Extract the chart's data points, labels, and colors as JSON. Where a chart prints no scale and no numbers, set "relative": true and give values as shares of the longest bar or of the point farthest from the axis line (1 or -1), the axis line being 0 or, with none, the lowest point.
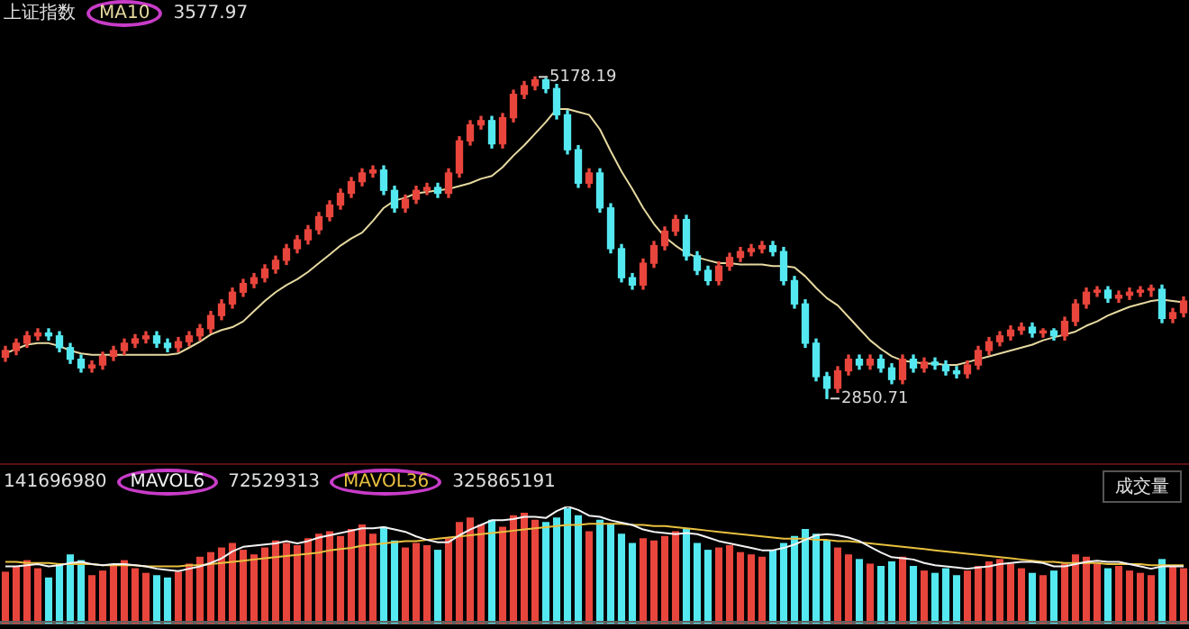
{
  "chart_data": [
    {
      "type": "candlestick",
      "title": "上证指数",
      "marker": "none",
      "categories": [
        null,
        null,
        null,
        null,
        null,
        null,
        null,
        null,
        null,
        null,
        null,
        null,
        null,
        null,
        null,
        null,
        null,
        null,
        null,
        null,
        null,
        null,
        null,
        null,
        null,
        null,
        null,
        null,
        null,
        null,
        null,
        null,
        null,
        null,
        null,
        null,
        null,
        null,
        null,
        null,
        null,
        null,
        null,
        null,
        null,
        null,
        null,
        null,
        null,
        null,
        null,
        null,
        null,
        null,
        null,
        null,
        null,
        null,
        null,
        null,
        null,
        null,
        null,
        null,
        null,
        null,
        null,
        null,
        null,
        null,
        null,
        null,
        null,
        null,
        null,
        null,
        null,
        null,
        null,
        null,
        null,
        null,
        null,
        null,
        null,
        null,
        null,
        null,
        null,
        null,
        null,
        null,
        null,
        null,
        null,
        null,
        null,
        null,
        null,
        null,
        null,
        null,
        null,
        null,
        null,
        null,
        null,
        null,
        null,
        null
      ],
      "ohlc": [
        [
          3150,
          3228,
          3120,
          3198
        ],
        [
          3198,
          3281,
          3168,
          3251
        ],
        [
          3251,
          3334,
          3221,
          3304
        ],
        [
          3304,
          3355,
          3274,
          3325
        ],
        [
          3325,
          3355,
          3274,
          3304
        ],
        [
          3304,
          3334,
          3189,
          3219
        ],
        [
          3219,
          3249,
          3105,
          3135
        ],
        [
          3135,
          3165,
          3042,
          3072
        ],
        [
          3072,
          3123,
          3042,
          3093
        ],
        [
          3093,
          3186,
          3063,
          3156
        ],
        [
          3156,
          3228,
          3126,
          3198
        ],
        [
          3198,
          3281,
          3168,
          3251
        ],
        [
          3251,
          3313,
          3221,
          3283
        ],
        [
          3283,
          3334,
          3253,
          3304
        ],
        [
          3304,
          3334,
          3221,
          3251
        ],
        [
          3251,
          3281,
          3189,
          3219
        ],
        [
          3219,
          3292,
          3189,
          3262
        ],
        [
          3262,
          3334,
          3232,
          3304
        ],
        [
          3304,
          3386,
          3274,
          3356
        ],
        [
          3356,
          3481,
          3326,
          3451
        ],
        [
          3451,
          3565,
          3421,
          3535
        ],
        [
          3535,
          3650,
          3505,
          3620
        ],
        [
          3620,
          3713,
          3590,
          3683
        ],
        [
          3683,
          3755,
          3653,
          3725
        ],
        [
          3725,
          3818,
          3695,
          3788
        ],
        [
          3788,
          3881,
          3758,
          3851
        ],
        [
          3851,
          3965,
          3821,
          3935
        ],
        [
          3935,
          4029,
          3905,
          3999
        ],
        [
          3999,
          4102,
          3969,
          4072
        ],
        [
          4072,
          4197,
          4042,
          4167
        ],
        [
          4167,
          4281,
          4137,
          4251
        ],
        [
          4251,
          4366,
          4221,
          4336
        ],
        [
          4336,
          4450,
          4306,
          4420
        ],
        [
          4420,
          4513,
          4390,
          4483
        ],
        [
          4483,
          4534,
          4453,
          4504
        ],
        [
          4504,
          4534,
          4327,
          4357
        ],
        [
          4357,
          4387,
          4200,
          4230
        ],
        [
          4230,
          4323,
          4200,
          4293
        ],
        [
          4293,
          4387,
          4263,
          4357
        ],
        [
          4357,
          4408,
          4327,
          4378
        ],
        [
          4378,
          4408,
          4306,
          4336
        ],
        [
          4336,
          4513,
          4306,
          4483
        ],
        [
          4483,
          4745,
          4453,
          4715
        ],
        [
          4715,
          4861,
          4685,
          4831
        ],
        [
          4831,
          4892,
          4801,
          4862
        ],
        [
          4862,
          4892,
          4664,
          4694
        ],
        [
          4694,
          4913,
          4664,
          4883
        ],
        [
          4883,
          5082,
          4853,
          5052
        ],
        [
          5052,
          5145,
          5022,
          5115
        ],
        [
          5115,
          5178.19,
          5085,
          5157
        ],
        [
          5157,
          5167,
          5064,
          5094
        ],
        [
          5094,
          5124,
          4874,
          4904
        ],
        [
          4904,
          4934,
          4621,
          4651
        ],
        [
          4651,
          4681,
          4379,
          4409
        ],
        [
          4409,
          4513,
          4379,
          4483
        ],
        [
          4483,
          4513,
          4200,
          4230
        ],
        [
          4230,
          4260,
          3905,
          3935
        ],
        [
          3935,
          3965,
          3695,
          3725
        ],
        [
          3725,
          3755,
          3642,
          3672
        ],
        [
          3672,
          3860,
          3642,
          3830
        ],
        [
          3830,
          3987,
          3800,
          3957
        ],
        [
          3957,
          4092,
          3927,
          4062
        ],
        [
          4062,
          4176,
          4032,
          4146
        ],
        [
          4146,
          4176,
          3853,
          3883
        ],
        [
          3883,
          3913,
          3748,
          3778
        ],
        [
          3778,
          3808,
          3674,
          3704
        ],
        [
          3704,
          3839,
          3674,
          3809
        ],
        [
          3809,
          3902,
          3779,
          3872
        ],
        [
          3872,
          3944,
          3842,
          3914
        ],
        [
          3914,
          3965,
          3884,
          3935
        ],
        [
          3935,
          3987,
          3905,
          3957
        ],
        [
          3957,
          3987,
          3884,
          3914
        ],
        [
          3914,
          3944,
          3674,
          3704
        ],
        [
          3704,
          3734,
          3505,
          3535
        ],
        [
          3535,
          3565,
          3221,
          3251
        ],
        [
          3251,
          3281,
          2979,
          3009
        ],
        [
          3009,
          3039,
          2850.71,
          2925
        ],
        [
          2925,
          3081,
          2895,
          3051
        ],
        [
          3051,
          3165,
          3021,
          3135
        ],
        [
          3135,
          3165,
          3063,
          3093
        ],
        [
          3093,
          3165,
          3063,
          3135
        ],
        [
          3135,
          3165,
          3042,
          3072
        ],
        [
          3072,
          3102,
          2958,
          2988
        ],
        [
          2988,
          3165,
          2958,
          3135
        ],
        [
          3135,
          3165,
          3042,
          3072
        ],
        [
          3072,
          3144,
          3042,
          3114
        ],
        [
          3114,
          3144,
          3063,
          3093
        ],
        [
          3093,
          3123,
          3021,
          3051
        ],
        [
          3051,
          3081,
          3000,
          3030
        ],
        [
          3030,
          3123,
          3000,
          3093
        ],
        [
          3093,
          3228,
          3063,
          3198
        ],
        [
          3198,
          3292,
          3168,
          3262
        ],
        [
          3262,
          3334,
          3232,
          3304
        ],
        [
          3304,
          3376,
          3274,
          3346
        ],
        [
          3346,
          3397,
          3316,
          3367
        ],
        [
          3367,
          3397,
          3295,
          3325
        ],
        [
          3325,
          3355,
          3295,
          3340
        ],
        [
          3340,
          3355,
          3274,
          3304
        ],
        [
          3304,
          3439,
          3274,
          3409
        ],
        [
          3409,
          3565,
          3379,
          3535
        ],
        [
          3535,
          3650,
          3505,
          3620
        ],
        [
          3620,
          3660,
          3590,
          3635
        ],
        [
          3635,
          3660,
          3547,
          3577
        ],
        [
          3577,
          3628,
          3547,
          3598
        ],
        [
          3598,
          3650,
          3568,
          3620
        ],
        [
          3620,
          3660,
          3590,
          3635
        ],
        [
          3635,
          3671,
          3590,
          3641
        ],
        [
          3641,
          3671,
          3400,
          3430
        ],
        [
          3430,
          3502,
          3400,
          3472
        ],
        [
          3472,
          3586,
          3442,
          3556
        ]
      ],
      "colors": [
        "#e8453c",
        "#e8453c",
        "#e8453c",
        "#e8453c",
        "#54e8f0",
        "#54e8f0",
        "#54e8f0",
        "#54e8f0",
        "#e8453c",
        "#e8453c",
        "#e8453c",
        "#e8453c",
        "#e8453c",
        "#e8453c",
        "#54e8f0",
        "#54e8f0",
        "#e8453c",
        "#e8453c",
        "#e8453c",
        "#e8453c",
        "#e8453c",
        "#e8453c",
        "#e8453c",
        "#e8453c",
        "#e8453c",
        "#e8453c",
        "#e8453c",
        "#e8453c",
        "#e8453c",
        "#e8453c",
        "#e8453c",
        "#e8453c",
        "#e8453c",
        "#e8453c",
        "#e8453c",
        "#54e8f0",
        "#54e8f0",
        "#e8453c",
        "#e8453c",
        "#e8453c",
        "#54e8f0",
        "#e8453c",
        "#e8453c",
        "#e8453c",
        "#e8453c",
        "#54e8f0",
        "#e8453c",
        "#e8453c",
        "#e8453c",
        "#e8453c",
        "#54e8f0",
        "#54e8f0",
        "#54e8f0",
        "#54e8f0",
        "#e8453c",
        "#54e8f0",
        "#54e8f0",
        "#54e8f0",
        "#54e8f0",
        "#e8453c",
        "#e8453c",
        "#e8453c",
        "#e8453c",
        "#54e8f0",
        "#54e8f0",
        "#54e8f0",
        "#e8453c",
        "#e8453c",
        "#e8453c",
        "#e8453c",
        "#e8453c",
        "#54e8f0",
        "#54e8f0",
        "#54e8f0",
        "#54e8f0",
        "#54e8f0",
        "#54e8f0",
        "#e8453c",
        "#e8453c",
        "#54e8f0",
        "#e8453c",
        "#54e8f0",
        "#54e8f0",
        "#e8453c",
        "#54e8f0",
        "#e8453c",
        "#54e8f0",
        "#54e8f0",
        "#54e8f0",
        "#e8453c",
        "#e8453c",
        "#e8453c",
        "#e8453c",
        "#e8453c",
        "#e8453c",
        "#54e8f0",
        "#e8453c",
        "#54e8f0",
        "#e8453c",
        "#e8453c",
        "#e8453c",
        "#e8453c",
        "#54e8f0",
        "#e8453c",
        "#e8453c",
        "#e8453c",
        "#e8453c",
        "#54e8f0",
        "#e8453c",
        "#e8453c"
      ],
      "series": [
        {
          "name": "MA10",
          "type": "line",
          "color": "#e6d9a0",
          "values": [
            3177,
            3209,
            3240,
            3251,
            3251,
            3230,
            3198,
            3177,
            3167,
            3167,
            3167,
            3167,
            3167,
            3167,
            3167,
            3167,
            3177,
            3219,
            3262,
            3314,
            3346,
            3367,
            3409,
            3483,
            3556,
            3620,
            3672,
            3714,
            3767,
            3830,
            3893,
            3957,
            4009,
            4051,
            4136,
            4230,
            4283,
            4304,
            4336,
            4346,
            4357,
            4367,
            4388,
            4409,
            4441,
            4462,
            4525,
            4609,
            4683,
            4767,
            4852,
            4946,
            4946,
            4925,
            4904,
            4799,
            4641,
            4494,
            4367,
            4230,
            4114,
            4020,
            3957,
            3904,
            3872,
            3851,
            3830,
            3830,
            3820,
            3820,
            3820,
            3809,
            3809,
            3799,
            3735,
            3651,
            3577,
            3525,
            3441,
            3356,
            3272,
            3209,
            3156,
            3125,
            3114,
            3104,
            3104,
            3093,
            3093,
            3114,
            3135,
            3156,
            3177,
            3198,
            3219,
            3240,
            3272,
            3293,
            3314,
            3335,
            3377,
            3409,
            3451,
            3483,
            3514,
            3535,
            3556,
            3567,
            3556,
            3546
          ]
        }
      ],
      "annotations": [
        "3577.97",
        "5178.19",
        "2850.71"
      ]
    },
    {
      "type": "bar",
      "relative": true,
      "categories": [
        null,
        null,
        null,
        null,
        null,
        null,
        null,
        null,
        null,
        null,
        null,
        null,
        null,
        null,
        null,
        null,
        null,
        null,
        null,
        null,
        null,
        null,
        null,
        null,
        null,
        null,
        null,
        null,
        null,
        null,
        null,
        null,
        null,
        null,
        null,
        null,
        null,
        null,
        null,
        null,
        null,
        null,
        null,
        null,
        null,
        null,
        null,
        null,
        null,
        null,
        null,
        null,
        null,
        null,
        null,
        null,
        null,
        null,
        null,
        null,
        null,
        null,
        null,
        null,
        null,
        null,
        null,
        null,
        null,
        null,
        null,
        null,
        null,
        null,
        null,
        null,
        null,
        null,
        null,
        null,
        null,
        null,
        null,
        null,
        null,
        null,
        null,
        null,
        null,
        null,
        null,
        null,
        null,
        null,
        null,
        null,
        null,
        null,
        null,
        null,
        null,
        null,
        null,
        null,
        null,
        null,
        null,
        null,
        null,
        null
      ],
      "series": [
        {
          "type": "bar",
          "values": [
            0.45,
            0.5,
            0.55,
            0.48,
            0.4,
            0.52,
            0.6,
            0.55,
            0.42,
            0.46,
            0.5,
            0.55,
            0.48,
            0.44,
            0.42,
            0.4,
            0.45,
            0.52,
            0.58,
            0.62,
            0.66,
            0.7,
            0.64,
            0.6,
            0.66,
            0.72,
            0.7,
            0.68,
            0.74,
            0.78,
            0.8,
            0.76,
            0.82,
            0.86,
            0.78,
            0.84,
            0.72,
            0.66,
            0.7,
            0.68,
            0.64,
            0.74,
            0.88,
            0.92,
            0.86,
            0.9,
            0.84,
            0.94,
            0.96,
            0.9,
            0.88,
            0.92,
            1.0,
            0.94,
            0.8,
            0.9,
            0.86,
            0.78,
            0.7,
            0.74,
            0.72,
            0.76,
            0.8,
            0.82,
            0.7,
            0.64,
            0.66,
            0.68,
            0.62,
            0.6,
            0.58,
            0.64,
            0.7,
            0.76,
            0.82,
            0.78,
            0.72,
            0.66,
            0.6,
            0.56,
            0.52,
            0.5,
            0.54,
            0.58,
            0.5,
            0.46,
            0.44,
            0.48,
            0.42,
            0.46,
            0.5,
            0.54,
            0.56,
            0.52,
            0.48,
            0.44,
            0.42,
            0.46,
            0.52,
            0.6,
            0.58,
            0.52,
            0.48,
            0.5,
            0.46,
            0.44,
            0.42,
            0.56,
            0.5,
            0.48
          ],
          "colors": [
            "#e8453c",
            "#e8453c",
            "#e8453c",
            "#e8453c",
            "#54e8f0",
            "#54e8f0",
            "#54e8f0",
            "#54e8f0",
            "#e8453c",
            "#e8453c",
            "#e8453c",
            "#e8453c",
            "#e8453c",
            "#e8453c",
            "#54e8f0",
            "#54e8f0",
            "#e8453c",
            "#e8453c",
            "#e8453c",
            "#e8453c",
            "#e8453c",
            "#e8453c",
            "#e8453c",
            "#e8453c",
            "#e8453c",
            "#e8453c",
            "#e8453c",
            "#e8453c",
            "#e8453c",
            "#e8453c",
            "#e8453c",
            "#e8453c",
            "#e8453c",
            "#e8453c",
            "#e8453c",
            "#54e8f0",
            "#54e8f0",
            "#e8453c",
            "#e8453c",
            "#e8453c",
            "#54e8f0",
            "#e8453c",
            "#e8453c",
            "#e8453c",
            "#e8453c",
            "#54e8f0",
            "#e8453c",
            "#e8453c",
            "#e8453c",
            "#e8453c",
            "#54e8f0",
            "#54e8f0",
            "#54e8f0",
            "#54e8f0",
            "#e8453c",
            "#54e8f0",
            "#54e8f0",
            "#54e8f0",
            "#54e8f0",
            "#e8453c",
            "#e8453c",
            "#e8453c",
            "#e8453c",
            "#54e8f0",
            "#54e8f0",
            "#54e8f0",
            "#e8453c",
            "#e8453c",
            "#e8453c",
            "#e8453c",
            "#e8453c",
            "#54e8f0",
            "#54e8f0",
            "#54e8f0",
            "#54e8f0",
            "#54e8f0",
            "#54e8f0",
            "#e8453c",
            "#e8453c",
            "#54e8f0",
            "#e8453c",
            "#54e8f0",
            "#54e8f0",
            "#e8453c",
            "#54e8f0",
            "#e8453c",
            "#54e8f0",
            "#54e8f0",
            "#54e8f0",
            "#e8453c",
            "#e8453c",
            "#e8453c",
            "#e8453c",
            "#e8453c",
            "#e8453c",
            "#54e8f0",
            "#e8453c",
            "#54e8f0",
            "#e8453c",
            "#e8453c",
            "#e8453c",
            "#e8453c",
            "#54e8f0",
            "#e8453c",
            "#e8453c",
            "#e8453c",
            "#e8453c",
            "#54e8f0",
            "#e8453c",
            "#e8453c"
          ]
        }
      ]
    },
    {
      "type": "line",
      "relative": true,
      "marker": "none",
      "categories": [
        null,
        null,
        null,
        null,
        null,
        null,
        null,
        null,
        null,
        null,
        null,
        null,
        null,
        null,
        null,
        null,
        null,
        null,
        null,
        null,
        null,
        null,
        null,
        null,
        null,
        null,
        null,
        null,
        null,
        null,
        null,
        null,
        null,
        null,
        null,
        null,
        null,
        null,
        null,
        null,
        null,
        null,
        null,
        null,
        null,
        null,
        null,
        null,
        null,
        null,
        null,
        null,
        null,
        null,
        null,
        null,
        null,
        null,
        null,
        null,
        null,
        null,
        null,
        null,
        null,
        null,
        null,
        null,
        null,
        null,
        null,
        null,
        null,
        null,
        null,
        null,
        null,
        null,
        null,
        null,
        null,
        null,
        null,
        null,
        null,
        null,
        null,
        null,
        null,
        null,
        null,
        null,
        null,
        null,
        null,
        null,
        null,
        null,
        null,
        null,
        null,
        null,
        null,
        null,
        null,
        null,
        null,
        null,
        null,
        null
      ],
      "series": [
        {
          "name": "MAVOL6",
          "type": "line",
          "color": "#f2f2f2",
          "values": [
            0.48,
            0.48,
            0.49,
            0.5,
            0.48,
            0.49,
            0.51,
            0.52,
            0.5,
            0.49,
            0.5,
            0.5,
            0.49,
            0.48,
            0.46,
            0.45,
            0.44,
            0.46,
            0.48,
            0.51,
            0.55,
            0.61,
            0.65,
            0.66,
            0.67,
            0.68,
            0.7,
            0.68,
            0.7,
            0.73,
            0.75,
            0.77,
            0.79,
            0.81,
            0.81,
            0.82,
            0.8,
            0.78,
            0.74,
            0.71,
            0.69,
            0.69,
            0.75,
            0.8,
            0.84,
            0.88,
            0.88,
            0.89,
            0.91,
            0.91,
            0.9,
            0.96,
            1.0,
            0.97,
            0.92,
            0.91,
            0.88,
            0.86,
            0.84,
            0.8,
            0.78,
            0.77,
            0.76,
            0.77,
            0.76,
            0.73,
            0.7,
            0.68,
            0.66,
            0.64,
            0.62,
            0.62,
            0.64,
            0.67,
            0.71,
            0.75,
            0.76,
            0.75,
            0.73,
            0.7,
            0.65,
            0.6,
            0.56,
            0.55,
            0.54,
            0.51,
            0.49,
            0.48,
            0.47,
            0.46,
            0.47,
            0.48,
            0.5,
            0.51,
            0.52,
            0.52,
            0.51,
            0.48,
            0.48,
            0.5,
            0.52,
            0.53,
            0.52,
            0.52,
            0.5,
            0.48,
            0.46,
            0.48,
            0.48,
            0.48
          ]
        },
        {
          "name": "MAVOL36",
          "type": "line",
          "color": "#e8c040",
          "values": [
            0.52,
            0.52,
            0.51,
            0.51,
            0.51,
            0.5,
            0.5,
            0.5,
            0.5,
            0.49,
            0.49,
            0.49,
            0.49,
            0.48,
            0.48,
            0.48,
            0.48,
            0.49,
            0.49,
            0.5,
            0.51,
            0.52,
            0.53,
            0.54,
            0.55,
            0.56,
            0.57,
            0.58,
            0.59,
            0.6,
            0.62,
            0.63,
            0.64,
            0.66,
            0.67,
            0.68,
            0.69,
            0.7,
            0.7,
            0.71,
            0.72,
            0.73,
            0.74,
            0.75,
            0.76,
            0.77,
            0.78,
            0.79,
            0.8,
            0.81,
            0.82,
            0.83,
            0.84,
            0.84,
            0.85,
            0.85,
            0.85,
            0.85,
            0.84,
            0.84,
            0.83,
            0.83,
            0.82,
            0.81,
            0.8,
            0.79,
            0.78,
            0.77,
            0.76,
            0.75,
            0.74,
            0.73,
            0.72,
            0.72,
            0.72,
            0.71,
            0.71,
            0.7,
            0.7,
            0.69,
            0.68,
            0.67,
            0.66,
            0.65,
            0.64,
            0.63,
            0.62,
            0.61,
            0.6,
            0.59,
            0.58,
            0.57,
            0.56,
            0.55,
            0.54,
            0.53,
            0.52,
            0.52,
            0.51,
            0.51,
            0.51,
            0.51,
            0.5,
            0.5,
            0.5,
            0.5,
            0.49,
            0.49,
            0.49,
            0.49
          ]
        }
      ],
      "annotations": [
        "141696980",
        "72529313",
        "325865191",
        "成交量"
      ]
    }
  ]
}
